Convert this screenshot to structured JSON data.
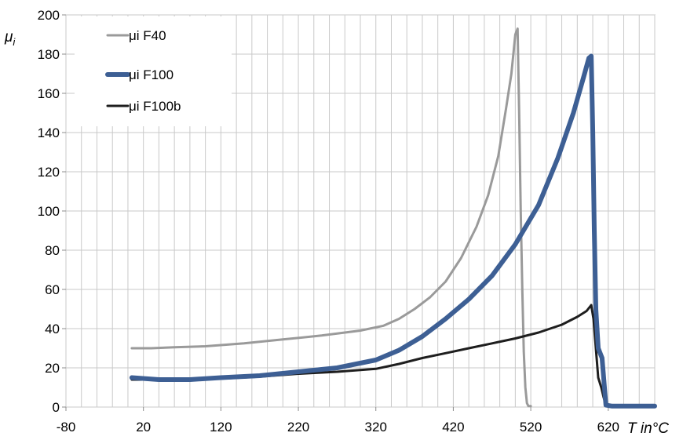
{
  "chart_data": {
    "type": "line",
    "xlabel": "T in°C",
    "ylabel": "μi",
    "xlim": [
      -80,
      680
    ],
    "ylim": [
      0,
      200
    ],
    "x_ticks": [
      "-80",
      "20",
      "120",
      "220",
      "320",
      "420",
      "520",
      "620"
    ],
    "y_ticks": [
      "0",
      "20",
      "40",
      "60",
      "80",
      "100",
      "120",
      "140",
      "160",
      "180",
      "200"
    ],
    "grid": true,
    "legend_position": "top-left",
    "series": [
      {
        "name": "μi F40",
        "color": "#9a9a9a",
        "x": [
          5,
          30,
          60,
          100,
          150,
          200,
          250,
          300,
          330,
          350,
          370,
          390,
          410,
          430,
          450,
          465,
          478,
          488,
          495,
          500,
          503,
          505,
          507,
          509,
          511,
          513,
          515,
          517,
          520
        ],
        "y": [
          30,
          30,
          30.5,
          31,
          32.5,
          34.5,
          36.5,
          39,
          41.5,
          45,
          50,
          56,
          64,
          76,
          92,
          108,
          128,
          152,
          170,
          190,
          193,
          150,
          100,
          60,
          28,
          10,
          2,
          0.5,
          0.5
        ]
      },
      {
        "name": "μi F100",
        "color": "#3d5f94",
        "x": [
          5,
          40,
          80,
          120,
          170,
          220,
          270,
          320,
          350,
          380,
          410,
          440,
          470,
          500,
          530,
          555,
          575,
          588,
          595,
          598,
          600,
          602,
          604,
          607,
          612,
          617,
          625,
          640,
          680
        ],
        "y": [
          15,
          14,
          14,
          15,
          16,
          18,
          20,
          24,
          29,
          36,
          45,
          55,
          67,
          83,
          103,
          127,
          150,
          168,
          178,
          179,
          140,
          90,
          50,
          30,
          25,
          1,
          0.5,
          0.5,
          0.5
        ]
      },
      {
        "name": "μi F100b",
        "color": "#1e1e1e",
        "x": [
          5,
          40,
          80,
          120,
          170,
          220,
          270,
          320,
          350,
          380,
          410,
          440,
          470,
          500,
          530,
          560,
          580,
          592,
          598,
          601,
          604,
          607,
          611,
          614,
          617,
          620,
          630,
          650,
          680
        ],
        "y": [
          14,
          14,
          14,
          14.5,
          15.5,
          17,
          18,
          19.5,
          22,
          25,
          27.5,
          30,
          32.5,
          35,
          38,
          42,
          46,
          49,
          52,
          45,
          30,
          15,
          10,
          5,
          1,
          0.5,
          0.5,
          0.5,
          0.5
        ]
      }
    ]
  }
}
